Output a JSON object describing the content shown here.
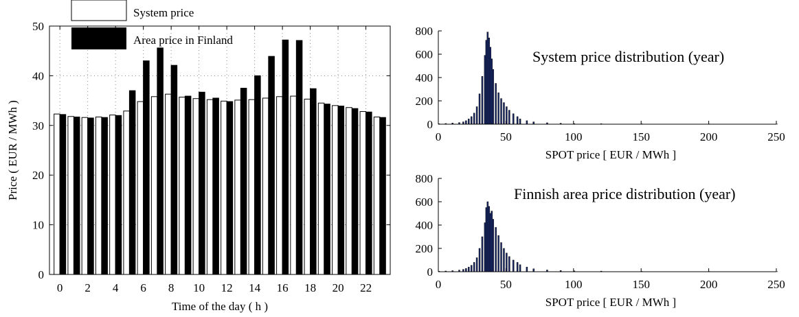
{
  "chart_data": [
    {
      "type": "bar",
      "title": "",
      "xlabel": "Time of the day ( h )",
      "ylabel": "Price ( EUR / MWh )",
      "categories": [
        0,
        1,
        2,
        3,
        4,
        5,
        6,
        7,
        8,
        9,
        10,
        11,
        12,
        13,
        14,
        15,
        16,
        17,
        18,
        19,
        20,
        21,
        22,
        23
      ],
      "x_tick_labels": [
        "0",
        "2",
        "4",
        "6",
        "8",
        "10",
        "12",
        "14",
        "16",
        "18",
        "20",
        "22"
      ],
      "y_tick_labels": [
        "0",
        "10",
        "20",
        "30",
        "40",
        "50"
      ],
      "ylim": [
        0,
        50
      ],
      "grid": true,
      "legend_position": "top-left",
      "series": [
        {
          "name": "System price",
          "color": "#ffffff",
          "values": [
            32.3,
            31.8,
            31.6,
            31.7,
            32.1,
            32.9,
            34.8,
            35.8,
            36.3,
            35.7,
            35.4,
            35.2,
            34.9,
            35.1,
            35.2,
            35.5,
            35.8,
            35.9,
            35.3,
            34.5,
            34.0,
            33.6,
            32.8,
            31.7
          ]
        },
        {
          "name": "Area price in Finland",
          "color": "#000000",
          "values": [
            32.2,
            31.7,
            31.5,
            31.6,
            32.0,
            37.0,
            43.0,
            45.6,
            42.1,
            35.9,
            36.7,
            35.5,
            34.8,
            37.5,
            40.0,
            43.9,
            47.2,
            47.1,
            37.4,
            34.3,
            33.9,
            33.4,
            32.7,
            31.6
          ]
        }
      ]
    },
    {
      "type": "bar",
      "subtype": "histogram",
      "title": "System price distribution (year)",
      "xlabel": "SPOT price [ EUR / MWh ]",
      "ylabel": "",
      "xlim": [
        0,
        250
      ],
      "ylim": [
        0,
        800
      ],
      "x_tick_labels": [
        "0",
        "50",
        "100",
        "150",
        "200",
        "250"
      ],
      "y_tick_labels": [
        "0",
        "200",
        "400",
        "600",
        "800"
      ],
      "bin_width": 1,
      "bar_color": "#1a2a6c",
      "bins": [
        [
          0,
          4
        ],
        [
          5,
          6
        ],
        [
          10,
          10
        ],
        [
          15,
          14
        ],
        [
          18,
          20
        ],
        [
          20,
          30
        ],
        [
          22,
          45
        ],
        [
          24,
          65
        ],
        [
          26,
          95
        ],
        [
          28,
          150
        ],
        [
          30,
          260
        ],
        [
          32,
          410
        ],
        [
          34,
          590
        ],
        [
          35,
          720
        ],
        [
          36,
          790
        ],
        [
          37,
          740
        ],
        [
          38,
          660
        ],
        [
          39,
          560
        ],
        [
          40,
          470
        ],
        [
          42,
          350
        ],
        [
          44,
          270
        ],
        [
          46,
          220
        ],
        [
          48,
          185
        ],
        [
          50,
          150
        ],
        [
          52,
          120
        ],
        [
          55,
          90
        ],
        [
          58,
          65
        ],
        [
          60,
          45
        ],
        [
          65,
          30
        ],
        [
          70,
          20
        ],
        [
          80,
          12
        ],
        [
          90,
          8
        ],
        [
          100,
          5
        ],
        [
          120,
          4
        ],
        [
          150,
          3
        ],
        [
          200,
          2
        ],
        [
          250,
          1
        ]
      ]
    },
    {
      "type": "bar",
      "subtype": "histogram",
      "title": "Finnish area price distribution (year)",
      "xlabel": "SPOT price [ EUR / MWh ]",
      "ylabel": "",
      "xlim": [
        0,
        250
      ],
      "ylim": [
        0,
        800
      ],
      "x_tick_labels": [
        "0",
        "50",
        "100",
        "150",
        "200",
        "250"
      ],
      "y_tick_labels": [
        "0",
        "200",
        "400",
        "600",
        "800"
      ],
      "bin_width": 1,
      "bar_color": "#1a2a6c",
      "bins": [
        [
          0,
          4
        ],
        [
          5,
          6
        ],
        [
          10,
          9
        ],
        [
          15,
          14
        ],
        [
          18,
          20
        ],
        [
          20,
          28
        ],
        [
          22,
          40
        ],
        [
          24,
          55
        ],
        [
          26,
          80
        ],
        [
          28,
          120
        ],
        [
          30,
          200
        ],
        [
          32,
          300
        ],
        [
          34,
          420
        ],
        [
          35,
          550
        ],
        [
          36,
          600
        ],
        [
          37,
          560
        ],
        [
          38,
          500
        ],
        [
          39,
          520
        ],
        [
          40,
          450
        ],
        [
          42,
          380
        ],
        [
          44,
          310
        ],
        [
          46,
          250
        ],
        [
          48,
          200
        ],
        [
          50,
          160
        ],
        [
          52,
          130
        ],
        [
          55,
          100
        ],
        [
          58,
          80
        ],
        [
          60,
          60
        ],
        [
          65,
          40
        ],
        [
          70,
          25
        ],
        [
          80,
          15
        ],
        [
          90,
          10
        ],
        [
          100,
          7
        ],
        [
          120,
          5
        ],
        [
          150,
          3
        ],
        [
          200,
          2
        ],
        [
          250,
          1
        ]
      ]
    }
  ]
}
